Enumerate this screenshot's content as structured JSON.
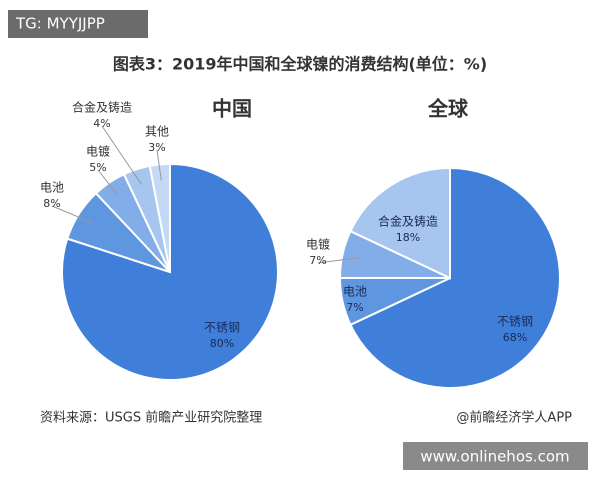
{
  "header": {
    "tag": "TG: MYYJJPP",
    "title": "图表3：2019年中国和全球镍的消费结构(单位：%)"
  },
  "footer": {
    "source": "资料来源：USGS 前瞻产业研究院整理",
    "credit": "@前瞻经济学人APP",
    "watermark": "www.onlinehos.com"
  },
  "chart_data": [
    {
      "type": "pie",
      "title": "中国",
      "categories": [
        "不锈钢",
        "电池",
        "电镀",
        "合金及铸造",
        "其他"
      ],
      "values": [
        80,
        8,
        5,
        4,
        3
      ],
      "value_labels": [
        "80%",
        "8%",
        "5%",
        "4%",
        "3%"
      ],
      "colors": [
        "#3f7fd9",
        "#5e96e0",
        "#82ade8",
        "#a6c5ef",
        "#c4d9f5"
      ]
    },
    {
      "type": "pie",
      "title": "全球",
      "categories": [
        "不锈钢",
        "电池",
        "电镀",
        "合金及铸造"
      ],
      "values": [
        68,
        7,
        7,
        18
      ],
      "value_labels": [
        "68%",
        "7%",
        "7%",
        "18%"
      ],
      "colors": [
        "#3f7fd9",
        "#5e96e0",
        "#82ade8",
        "#a6c5ef"
      ]
    }
  ]
}
